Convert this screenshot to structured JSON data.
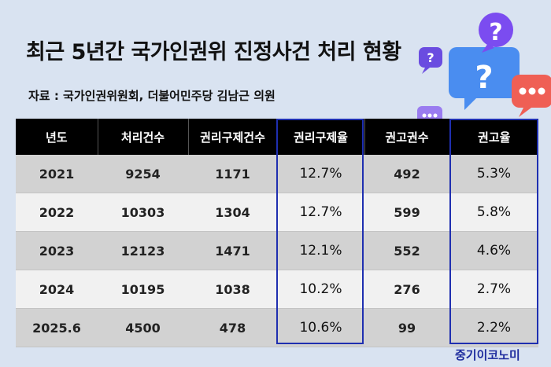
{
  "title": "최근 5년간 국가인권위 진정사건 처리 현황",
  "source": "자료 : 국가인권위원회, 더불어민주당 김남근 의원",
  "brand": "중기이코노미",
  "table": {
    "headers": [
      "년도",
      "처리건수",
      "권리구제건수",
      "권리구제율",
      "권고권수",
      "권고율"
    ],
    "rows": [
      [
        "2021",
        "9254",
        "1171",
        "12.7%",
        "492",
        "5.3%"
      ],
      [
        "2022",
        "10303",
        "1304",
        "12.7%",
        "599",
        "5.8%"
      ],
      [
        "2023",
        "12123",
        "1471",
        "12.1%",
        "552",
        "4.6%"
      ],
      [
        "2024",
        "10195",
        "1038",
        "10.2%",
        "276",
        "2.7%"
      ],
      [
        "2025.6",
        "4500",
        "478",
        "10.6%",
        "99",
        "2.2%"
      ]
    ],
    "highlighted_columns": [
      "권리구제율",
      "권고율"
    ],
    "highlight_color": "#1f2fb0"
  },
  "decoration": {
    "icons": [
      "question-bubble-icon",
      "question-bubble-icon",
      "speech-bubble-dots-icon",
      "speech-bubble-dots-icon"
    ],
    "colors": {
      "purple": "#7b4cf0",
      "blue": "#4a8df0",
      "red": "#ef5f55"
    }
  }
}
